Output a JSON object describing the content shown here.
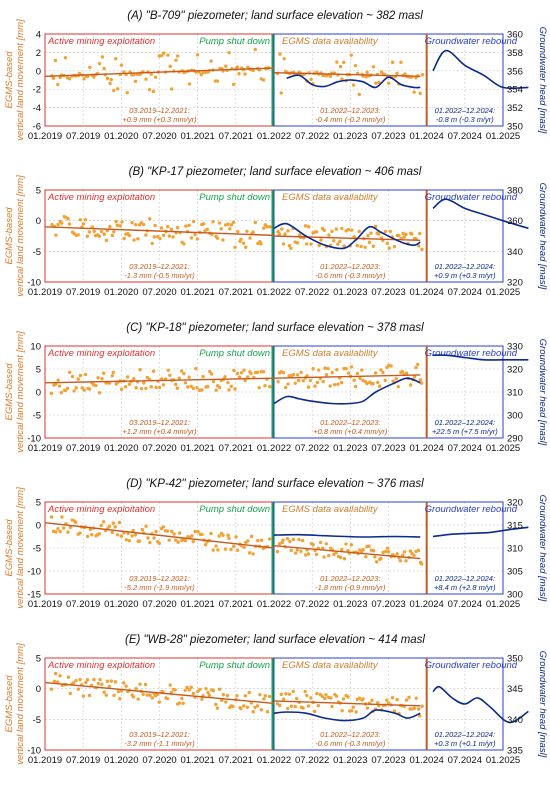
{
  "colors": {
    "land": "#e07b2a",
    "points": "#f4a133",
    "trend": "#c85a1e",
    "head": "#0a2a8c",
    "mining": "#e03030",
    "pump": "#16a34a",
    "egms": "#d08030",
    "rebound": "#2a3fd0",
    "grid": "#c8c8c8"
  },
  "labels": {
    "left_axis": [
      "EGMS-based",
      "vertical land movement [mm]"
    ],
    "right_axis": "Groundwater head [masl]",
    "phase_mining": "Active mining exploitation",
    "phase_pump": "Pump shut down",
    "phase_egms": "EGMS data availability",
    "phase_rebound": "Groundwater rebound"
  },
  "chart_data": [
    {
      "type": "scatter",
      "title": "(A) \"B-709\" piezometer; land surface elevation ~ 382 masl",
      "x_ticks": [
        "01.2019",
        "07.2019",
        "01.2020",
        "07.2020",
        "01.2021",
        "07.2021",
        "01.2022",
        "07.2022",
        "01.2023",
        "07.2023",
        "01.2024",
        "07.2024",
        "01.2025"
      ],
      "left_ylim": [
        -6,
        4
      ],
      "left_ticks": [
        4,
        2,
        0,
        -2,
        -4,
        -6
      ],
      "right_ylim": [
        350,
        360
      ],
      "right_ticks": [
        360,
        358,
        356,
        354,
        352,
        350
      ],
      "trend1": [
        [
          0,
          -0.6
        ],
        [
          36,
          0.3
        ]
      ],
      "trend2": [
        [
          36,
          -0.2
        ],
        [
          59,
          -0.6
        ]
      ],
      "scatter_band": [
        -0.2,
        2.2
      ],
      "head_curve": [
        [
          38,
          355.2
        ],
        [
          40,
          355.5
        ],
        [
          42,
          354.5
        ],
        [
          44,
          354.3
        ],
        [
          46,
          354.8
        ],
        [
          48,
          355.0
        ],
        [
          50,
          354.8
        ],
        [
          52,
          354.2
        ],
        [
          54,
          355.3
        ],
        [
          56,
          354.5
        ],
        [
          58,
          354.2
        ],
        [
          59,
          354.2
        ],
        [
          61,
          356.0
        ],
        [
          63,
          358.2
        ],
        [
          66,
          356.6
        ],
        [
          69,
          355.5
        ],
        [
          72,
          354.2
        ],
        [
          76,
          354.2
        ]
      ],
      "note1": [
        "03.2019–12.2021:",
        "+0.9 mm (+0.3 mm/yr)"
      ],
      "note2": [
        "01.2022–12.2023:",
        "-0.4 mm (-0.2 mm/yr)"
      ],
      "note3": [
        "01.2022–12.2024:",
        "-0.8 m (-0.3 m/yr)"
      ]
    },
    {
      "type": "scatter",
      "title": "(B) \"KP-17 piezometer; land surface elevation ~ 406 masl",
      "x_ticks": [
        "01.2019",
        "07.2019",
        "01.2020",
        "07.2020",
        "01.2021",
        "07.2021",
        "01.2022",
        "07.2022",
        "01.2023",
        "07.2023",
        "01.2024",
        "07.2024",
        "01.2025"
      ],
      "left_ylim": [
        -10,
        5
      ],
      "left_ticks": [
        5,
        0,
        -5,
        -10
      ],
      "right_ylim": [
        320,
        380
      ],
      "right_ticks": [
        380,
        360,
        340,
        320
      ],
      "trend1": [
        [
          0,
          -1.0
        ],
        [
          36,
          -2.4
        ]
      ],
      "trend2": [
        [
          36,
          -2.5
        ],
        [
          59,
          -3.2
        ]
      ],
      "scatter_band": [
        -1.5,
        2.2
      ],
      "head_curve": [
        [
          36,
          355
        ],
        [
          38,
          358
        ],
        [
          41,
          350
        ],
        [
          44,
          344
        ],
        [
          47,
          342
        ],
        [
          49,
          348
        ],
        [
          51,
          356
        ],
        [
          53,
          352
        ],
        [
          56,
          346
        ],
        [
          58,
          344
        ],
        [
          59,
          346
        ],
        [
          61,
          368
        ],
        [
          63,
          374
        ],
        [
          66,
          368
        ],
        [
          69,
          364
        ],
        [
          72,
          360
        ],
        [
          76,
          355
        ]
      ],
      "note1": [
        "03.2019–12.2021:",
        "-1.3 mm (-0.5 mm/yr)"
      ],
      "note2": [
        "01.2022–12.2023:",
        "-0.6 mm (-0.3 mm/yr)"
      ],
      "note3": [
        "01.2022–12.2024:",
        "+0.9 m (+0.3 m/yr)"
      ]
    },
    {
      "type": "scatter",
      "title": "(C) \"KP-18\" piezometer; land surface elevation ~ 378 masl",
      "x_ticks": [
        "01.2019",
        "07.2019",
        "01.2020",
        "07.2020",
        "01.2021",
        "07.2021",
        "01.2022",
        "07.2022",
        "01.2023",
        "07.2023",
        "01.2024",
        "07.2024",
        "01.2025"
      ],
      "left_ylim": [
        -10,
        10
      ],
      "left_ticks": [
        10,
        5,
        0,
        -5,
        -10
      ],
      "right_ylim": [
        290,
        330
      ],
      "right_ticks": [
        330,
        320,
        310,
        300,
        290
      ],
      "trend1": [
        [
          0,
          2.0
        ],
        [
          36,
          3.0
        ]
      ],
      "trend2": [
        [
          36,
          3.0
        ],
        [
          59,
          3.7
        ]
      ],
      "scatter_band": [
        -2.0,
        2.5
      ],
      "head_curve": [
        [
          36,
          305
        ],
        [
          38,
          308
        ],
        [
          40,
          307
        ],
        [
          42,
          306
        ],
        [
          45,
          305
        ],
        [
          48,
          305
        ],
        [
          50,
          306
        ],
        [
          52,
          310
        ],
        [
          55,
          314
        ],
        [
          57,
          316
        ],
        [
          59,
          314
        ],
        [
          61,
          326
        ],
        [
          63,
          326
        ],
        [
          66,
          325
        ],
        [
          69,
          324
        ],
        [
          72,
          324
        ],
        [
          76,
          324
        ]
      ],
      "note1": [
        "03.2019–12.2021:",
        "+1.2 mm (+0.4 mm/yr)"
      ],
      "note2": [
        "01.2022–12.2023:",
        "+0.8 mm (+0.4 mm/yr)"
      ],
      "note3": [
        "01.2022–12.2024:",
        "+22.5 m (+7.5 m/yr)"
      ]
    },
    {
      "type": "scatter",
      "title": "(D) \"KP-42\" piezometer; land surface elevation ~ 376 masl",
      "x_ticks": [
        "01.2019",
        "07.2019",
        "01.2020",
        "07.2020",
        "01.2021",
        "07.2021",
        "01.2022",
        "07.2022",
        "01.2023",
        "07.2023",
        "01.2024",
        "07.2024",
        "01.2025"
      ],
      "left_ylim": [
        -15,
        5
      ],
      "left_ticks": [
        5,
        0,
        -5,
        -10,
        -15
      ],
      "right_ylim": [
        300,
        320
      ],
      "right_ticks": [
        320,
        315,
        310,
        305,
        300
      ],
      "trend1": [
        [
          0,
          0.5
        ],
        [
          36,
          -5.0
        ]
      ],
      "trend2": [
        [
          36,
          -4.5
        ],
        [
          59,
          -7.3
        ]
      ],
      "scatter_band": [
        -1.8,
        2.0
      ],
      "head_curve": [
        [
          36,
          312.8
        ],
        [
          40,
          312.9
        ],
        [
          45,
          312.6
        ],
        [
          50,
          312.4
        ],
        [
          55,
          312.5
        ],
        [
          59,
          312.4
        ],
        [
          61,
          312.5
        ],
        [
          64,
          313.0
        ],
        [
          67,
          313.2
        ],
        [
          70,
          313.4
        ],
        [
          73,
          314.0
        ],
        [
          76,
          314.5
        ]
      ],
      "note1": [
        "03.2019–12.2021:",
        "-5.2 mm (-1.9 mm/yr)"
      ],
      "note2": [
        "01.2022–12.2023:",
        "-1.8 mm (-0.9 mm/yr)"
      ],
      "note3": [
        "01.2022–12.2024:",
        "+8.4 m (+2.8 m/yr)"
      ]
    },
    {
      "type": "scatter",
      "title": "(E) \"WB-28\" piezometer; land surface elevation ~ 414 masl",
      "x_ticks": [
        "01.2019",
        "07.2019",
        "01.2020",
        "07.2020",
        "01.2021",
        "07.2021",
        "01.2022",
        "07.2022",
        "01.2023",
        "07.2023",
        "01.2024",
        "07.2024",
        "01.2025"
      ],
      "left_ylim": [
        -10,
        5
      ],
      "left_ticks": [
        5,
        0,
        -5,
        -10
      ],
      "right_ylim": [
        335,
        350
      ],
      "right_ticks": [
        350,
        345,
        340,
        335
      ],
      "trend1": [
        [
          0,
          1.0
        ],
        [
          36,
          -2.4
        ]
      ],
      "trend2": [
        [
          36,
          -2.0
        ],
        [
          59,
          -2.8
        ]
      ],
      "scatter_band": [
        -1.5,
        1.8
      ],
      "head_curve": [
        [
          36,
          341
        ],
        [
          38,
          341.2
        ],
        [
          41,
          341
        ],
        [
          44,
          340.2
        ],
        [
          47,
          339.8
        ],
        [
          50,
          340.2
        ],
        [
          52,
          341.5
        ],
        [
          55,
          341
        ],
        [
          57,
          340.2
        ],
        [
          59,
          341.0
        ],
        [
          61,
          344.5
        ],
        [
          62,
          345.3
        ],
        [
          64,
          343.5
        ],
        [
          66,
          342.5
        ],
        [
          68,
          343.5
        ],
        [
          70,
          342.0
        ],
        [
          73,
          339.5
        ],
        [
          76,
          341.3
        ]
      ],
      "note1": [
        "03.2019–12.2021:",
        "-3.2 mm (-1.1 mm/yr)"
      ],
      "note2": [
        "01.2022–12.2023:",
        "-0.6 mm (-0.3 mm/yr)"
      ],
      "note3": [
        "01.2022–12.2024:",
        "+0.3 m (+0.1 m/yr)"
      ]
    }
  ]
}
